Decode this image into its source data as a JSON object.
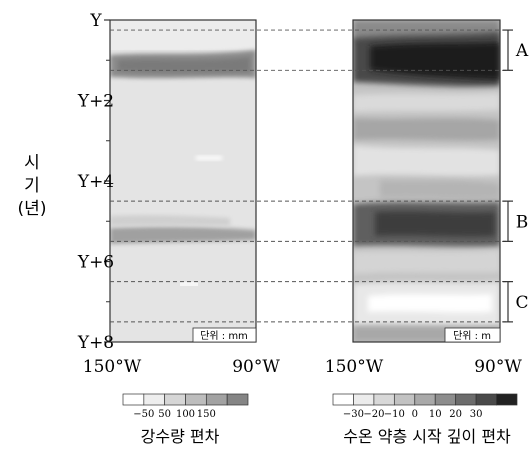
{
  "chart_data": [
    {
      "type": "heatmap",
      "title": "",
      "xlabel": "",
      "ylabel": "시기 (년)",
      "ylabel_chars": [
        "시",
        "기",
        "(년)"
      ],
      "x_ticks": [
        "150°W",
        "90°W"
      ],
      "x_range": [
        "150°W",
        "90°W"
      ],
      "y_ticks": [
        "Y",
        "Y+2",
        "Y+4",
        "Y+6",
        "Y+8"
      ],
      "y_range": [
        0,
        8
      ],
      "unit_label": "단위 : mm",
      "legend": {
        "caption": "강수량 편차",
        "tick_labels": [
          "−50",
          "50",
          "100",
          "150"
        ],
        "colors": [
          "#ffffff",
          "#eeeeee",
          "#d6d6d6",
          "#bdbdbd",
          "#a2a2a2",
          "#858585"
        ]
      }
    },
    {
      "type": "heatmap",
      "title": "",
      "xlabel": "",
      "x_ticks": [
        "150°W",
        "90°W"
      ],
      "x_range": [
        "150°W",
        "90°W"
      ],
      "y_range": [
        0,
        8
      ],
      "unit_label": "단위 : m",
      "legend": {
        "caption": "수온 약층 시작 깊이 편차",
        "tick_labels": [
          "−30",
          "−20",
          "−10",
          "0",
          "10",
          "20",
          "30"
        ],
        "colors": [
          "#ffffff",
          "#ececec",
          "#d8d8d8",
          "#c2c2c2",
          "#a9a9a9",
          "#8d8d8d",
          "#6c6c6c",
          "#4a4a4a",
          "#222222"
        ]
      }
    }
  ],
  "periods": [
    {
      "label": "A",
      "y_start": 0.25,
      "y_end": 1.25
    },
    {
      "label": "B",
      "y_start": 4.5,
      "y_end": 5.5
    },
    {
      "label": "C",
      "y_start": 6.5,
      "y_end": 7.5
    }
  ]
}
